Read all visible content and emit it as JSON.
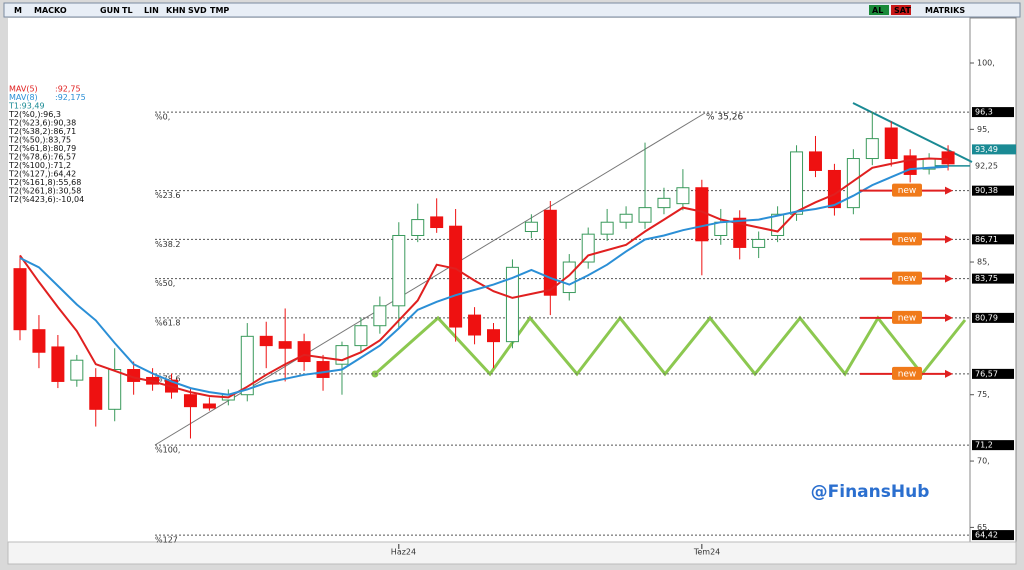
{
  "toolbar": {
    "left": [
      "M",
      "MACKO",
      "GUN",
      "TL",
      "LIN",
      "KHN",
      "SVD",
      "TMP"
    ],
    "right": [
      "AL",
      "SAT",
      "MATRIKS"
    ]
  },
  "chart_data": {
    "type": "candlestick",
    "categories": [
      null,
      null,
      null,
      null,
      null,
      null,
      null,
      null,
      null,
      null,
      null,
      null,
      null,
      null,
      null,
      null,
      null,
      null,
      null,
      null,
      "Haz24",
      null,
      null,
      null,
      null,
      null,
      null,
      null,
      null,
      null,
      null,
      null,
      null,
      null,
      null,
      null,
      "Tem24",
      null,
      null,
      null,
      null,
      null,
      null,
      null,
      null,
      null,
      null,
      null,
      null,
      null
    ],
    "open": [
      84.5,
      79.9,
      78.6,
      76.1,
      76.3,
      73.9,
      76.9,
      76.3,
      76.1,
      75.0,
      74.3,
      74.6,
      75.0,
      79.4,
      79.0,
      79.0,
      77.5,
      77.3,
      78.7,
      80.2,
      81.7,
      87.0,
      88.4,
      87.7,
      81.0,
      79.9,
      79.0,
      87.3,
      88.9,
      82.7,
      85.0,
      87.1,
      88.0,
      88.0,
      89.1,
      89.4,
      90.6,
      87.0,
      88.3,
      86.1,
      87.0,
      88.6,
      93.3,
      91.9,
      89.1,
      92.8,
      95.1,
      93.0,
      92.0,
      93.3
    ],
    "high": [
      85.5,
      81.0,
      79.5,
      78.0,
      77.0,
      78.5,
      77.5,
      77.0,
      76.6,
      75.5,
      74.8,
      75.4,
      80.4,
      80.5,
      81.5,
      79.6,
      78.0,
      79.0,
      80.8,
      82.4,
      88.0,
      89.4,
      89.8,
      89.0,
      81.6,
      80.4,
      85.2,
      88.6,
      89.6,
      85.6,
      87.6,
      89.0,
      89.2,
      94.0,
      90.6,
      92.0,
      91.2,
      89.0,
      88.9,
      87.3,
      89.2,
      93.8,
      94.5,
      92.4,
      93.5,
      96.3,
      95.6,
      93.5,
      93.2,
      93.8
    ],
    "low": [
      79.1,
      77.0,
      75.5,
      75.6,
      72.6,
      73.0,
      75.0,
      75.3,
      74.7,
      71.7,
      73.8,
      74.2,
      74.5,
      77.0,
      76.0,
      76.8,
      75.3,
      75.0,
      78.2,
      79.6,
      80.0,
      86.5,
      87.2,
      79.0,
      78.8,
      77.0,
      78.5,
      86.8,
      81.0,
      82.1,
      84.5,
      86.6,
      87.5,
      87.5,
      88.6,
      88.9,
      84.0,
      86.3,
      85.2,
      85.3,
      86.5,
      88.1,
      91.4,
      88.5,
      88.6,
      92.3,
      92.2,
      91.0,
      91.6,
      91.9
    ],
    "close": [
      79.9,
      78.2,
      76.0,
      77.6,
      73.9,
      76.9,
      76.0,
      75.8,
      75.2,
      74.1,
      74.0,
      75.0,
      79.4,
      78.7,
      78.5,
      77.5,
      76.3,
      78.7,
      80.2,
      81.7,
      87.0,
      88.2,
      87.6,
      80.1,
      79.5,
      79.0,
      84.6,
      88.0,
      82.5,
      85.0,
      87.1,
      88.0,
      88.6,
      89.1,
      89.8,
      90.6,
      86.6,
      88.0,
      86.1,
      86.7,
      88.6,
      93.3,
      91.9,
      89.1,
      92.8,
      94.3,
      92.8,
      91.6,
      92.8,
      92.4
    ],
    "up_color": "#3a9a5c",
    "down_color": "#ee1111",
    "series": [
      {
        "name": "MAV(5)",
        "last_label": ":92,75",
        "color": "#e02020",
        "values": [
          85.5,
          83.5,
          81.6,
          79.8,
          77.3,
          76.8,
          76.3,
          76.0,
          75.6,
          75.2,
          74.9,
          74.8,
          75.6,
          76.5,
          77.3,
          78.0,
          77.8,
          77.6,
          78.2,
          79.1,
          80.6,
          82.1,
          84.8,
          84.5,
          83.6,
          82.8,
          82.3,
          82.6,
          82.9,
          84.0,
          85.5,
          85.9,
          86.3,
          87.3,
          88.2,
          89.1,
          88.8,
          88.2,
          87.9,
          87.6,
          87.3,
          88.8,
          89.5,
          90.1,
          91.1,
          92.1,
          92.4,
          92.7,
          92.8,
          92.75
        ]
      },
      {
        "name": "MAV(8)",
        "last_label": ":92,175",
        "color": "#2b8fd6",
        "values": [
          85.3,
          84.6,
          83.2,
          81.8,
          80.6,
          78.9,
          77.3,
          76.6,
          76.0,
          75.5,
          75.2,
          75.0,
          75.4,
          75.9,
          76.2,
          76.5,
          76.7,
          76.9,
          77.8,
          78.7,
          80.0,
          81.4,
          82.0,
          82.5,
          82.9,
          83.3,
          83.8,
          84.4,
          83.8,
          83.3,
          84.0,
          84.8,
          85.8,
          86.7,
          87.0,
          87.4,
          87.7,
          88.0,
          88.1,
          88.2,
          88.5,
          88.8,
          89.0,
          89.3,
          90.0,
          90.8,
          91.4,
          92.0,
          92.1,
          92.175
        ]
      }
    ],
    "info_lines": [
      "T1:93,49",
      "T2(%0,):96,3",
      "T2(%23,6):90,38",
      "T2(%38,2):86,71",
      "T2(%50,):83,75",
      "T2(%61,8):80,79",
      "T2(%78,6):76,57",
      "T2(%100,):71,2",
      "T2(%127,):64,42",
      "T2(%161,8):55,68",
      "T2(%261,8):30,58",
      "T2(%423,6):-10,04"
    ],
    "ylim": [
      64.05,
      103.09
    ],
    "yticks": [
      {
        "value": 100,
        "label": "100,"
      },
      {
        "value": 95,
        "label": "95,"
      },
      {
        "value": 85,
        "label": "85,"
      },
      {
        "value": 75,
        "label": "75,"
      },
      {
        "value": 70,
        "label": "70,"
      },
      {
        "value": 65,
        "label": "65,"
      }
    ],
    "fib_levels": [
      {
        "name": "%0,",
        "value": 96.3,
        "label": "96,3"
      },
      {
        "name": "%23.6",
        "value": 90.38,
        "label": "90,38"
      },
      {
        "name": "%38.2",
        "value": 86.71,
        "label": "86,71"
      },
      {
        "name": "%50,",
        "value": 83.75,
        "label": "83,75"
      },
      {
        "name": "%61.8",
        "value": 80.79,
        "label": "80,79"
      },
      {
        "name": "%78.6",
        "value": 76.57,
        "label": "76,57"
      },
      {
        "name": "%100,",
        "value": 71.2,
        "label": "71,2"
      },
      {
        "name": "%127",
        "value": 64.42,
        "label": "64,42"
      }
    ],
    "last_price": {
      "value": 93.49,
      "label": "93,49"
    },
    "ma_price": {
      "value": 92.25,
      "label": "92,25"
    },
    "trend_annotation": "% 35,26",
    "tags": [
      "new",
      "new",
      "new",
      "new",
      "new"
    ],
    "watermark": "@FinansHub"
  }
}
